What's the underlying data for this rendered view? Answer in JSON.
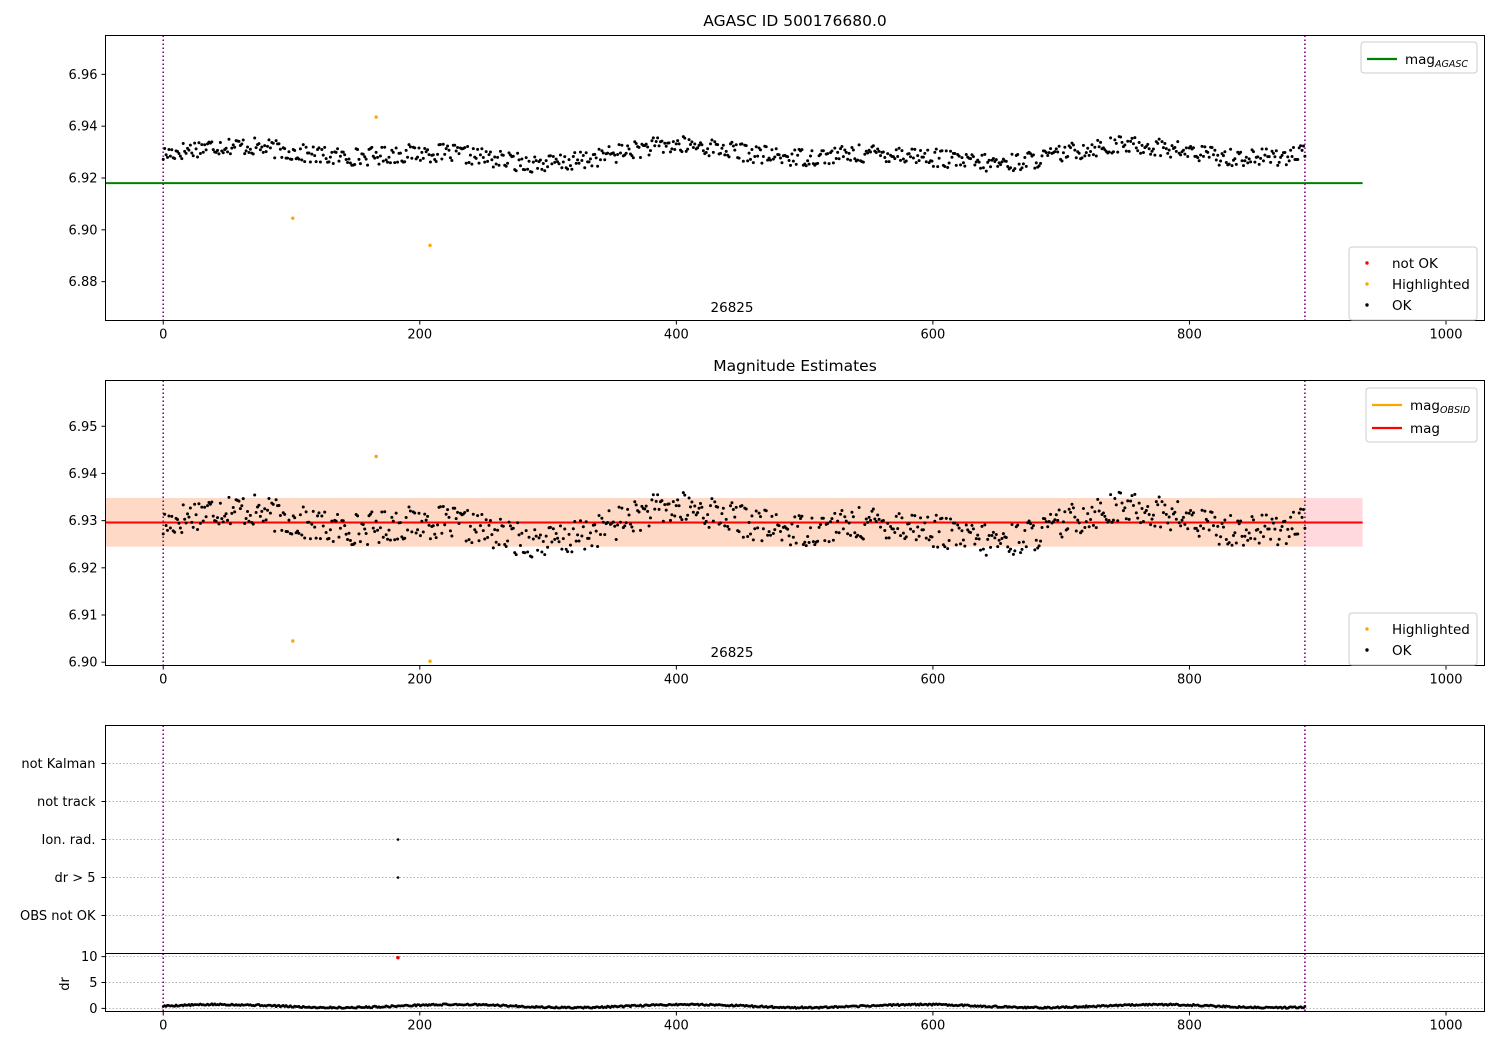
{
  "chart_data": [
    {
      "type": "scatter",
      "title": "AGASC ID 500176680.0",
      "xlim": [
        -45,
        1030
      ],
      "ylim": [
        6.865,
        6.975
      ],
      "xticks": [
        0,
        200,
        400,
        600,
        800,
        1000
      ],
      "yticks": [
        6.88,
        6.9,
        6.92,
        6.94,
        6.96
      ],
      "ytick_labels": [
        "6.88",
        "6.90",
        "6.92",
        "6.94",
        "6.96"
      ],
      "vlines": [
        0,
        890
      ],
      "hline": {
        "name": "mag",
        "sub": "AGASC",
        "value": 6.918,
        "x": [
          -45,
          935
        ],
        "color": "#008000"
      },
      "annotation": {
        "text": "26825",
        "x": 445,
        "y": 6.8685
      },
      "line_legend": [
        {
          "name": "mag",
          "sub": "AGASC",
          "color": "#008000"
        }
      ],
      "marker_legend": [
        {
          "label": "not OK",
          "color": "#ff0000"
        },
        {
          "label": "Highlighted",
          "color": "#ffa500"
        },
        {
          "label": "OK",
          "color": "#000000"
        }
      ],
      "highlighted": [
        [
          101,
          6.9045
        ],
        [
          208,
          6.894
        ],
        [
          166,
          6.9435
        ]
      ],
      "series": {
        "x_start": 0,
        "x_end": 890,
        "count": 800,
        "base": 6.929,
        "amplitude": 0.004,
        "noise": 0.0035,
        "seed": 17
      }
    },
    {
      "type": "scatter",
      "title": "Magnitude Estimates",
      "xlim": [
        -45,
        1030
      ],
      "ylim": [
        6.8993,
        6.9597
      ],
      "xticks": [
        0,
        200,
        400,
        600,
        800,
        1000
      ],
      "yticks": [
        6.9,
        6.91,
        6.92,
        6.93,
        6.94,
        6.95
      ],
      "ytick_labels": [
        "6.90",
        "6.91",
        "6.92",
        "6.93",
        "6.94",
        "6.95"
      ],
      "vlines": [
        0,
        890
      ],
      "hline": {
        "name": "mag",
        "value": 6.9296,
        "x": [
          -45,
          935
        ],
        "color": "#ff0000"
      },
      "band_outer": {
        "y": [
          6.9245,
          6.9348
        ],
        "x": [
          -45,
          935
        ],
        "color": "#ffd9de"
      },
      "band_inner": {
        "y": [
          6.9245,
          6.9348
        ],
        "x": [
          -45,
          890
        ],
        "color": "#fdd9c6"
      },
      "annotation": {
        "text": "26825",
        "x": 445,
        "y": 6.9003
      },
      "line_legend": [
        {
          "name": "mag",
          "sub": "OBSID",
          "color": "#ffa500"
        },
        {
          "name": "mag",
          "color": "#ff0000"
        }
      ],
      "marker_legend": [
        {
          "label": "Highlighted",
          "color": "#ffa500"
        },
        {
          "label": "OK",
          "color": "#000000"
        }
      ],
      "highlighted": [
        [
          101,
          6.9045
        ],
        [
          166,
          6.9436
        ],
        [
          208,
          6.9002
        ]
      ],
      "series": {
        "x_start": 0,
        "x_end": 890,
        "count": 800,
        "base": 6.929,
        "amplitude": 0.004,
        "noise": 0.0035,
        "seed": 17
      }
    },
    {
      "type": "scatter",
      "title": "",
      "xlim": [
        -45,
        1030
      ],
      "categories": [
        "OBS not OK",
        "dr > 5",
        "Ion. rad.",
        "not track",
        "not Kalman"
      ],
      "points": [
        {
          "category": "Ion. rad.",
          "x": 183
        },
        {
          "category": "dr > 5",
          "x": 183
        }
      ],
      "vlines": [
        0,
        890
      ]
    },
    {
      "type": "scatter",
      "title": "",
      "ylabel": "dr",
      "xlim": [
        -45,
        1030
      ],
      "ylim": [
        -0.6,
        10.6
      ],
      "xticks": [
        0,
        200,
        400,
        600,
        800,
        1000
      ],
      "yticks": [
        0,
        5,
        10
      ],
      "ytick_labels": [
        "0",
        "5",
        "10"
      ],
      "vlines": [
        0,
        890
      ],
      "outlier": {
        "x": 183,
        "y": 9.8,
        "color": "#ff0000"
      },
      "series": {
        "x_start": 0,
        "x_end": 890,
        "count": 800,
        "base": 0.45,
        "amplitude": 0.3,
        "noise": 0.15
      }
    }
  ]
}
